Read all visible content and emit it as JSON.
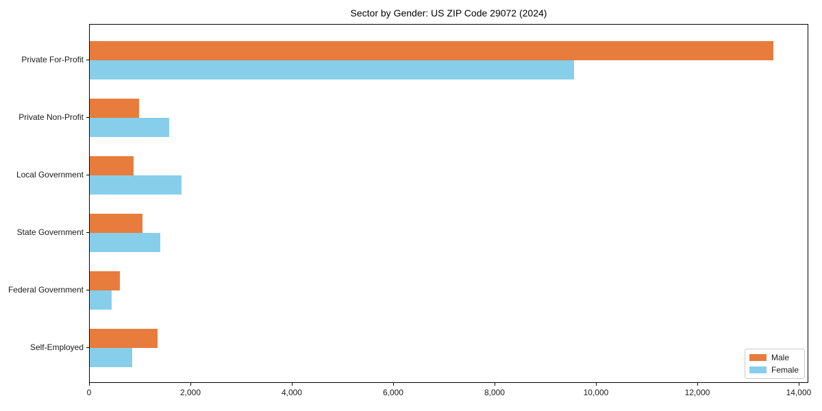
{
  "chart_data": {
    "type": "bar",
    "orientation": "horizontal",
    "title": "Sector by Gender: US ZIP Code 29072 (2024)",
    "categories": [
      "Private For-Profit",
      "Private Non-Profit",
      "Local Government",
      "State Government",
      "Federal Government",
      "Self-Employed"
    ],
    "series": [
      {
        "name": "Male",
        "color": "#E87C3C",
        "values": [
          13510,
          970,
          870,
          1040,
          600,
          1340
        ]
      },
      {
        "name": "Female",
        "color": "#87CEEB",
        "values": [
          9570,
          1570,
          1810,
          1400,
          440,
          840
        ]
      }
    ],
    "xlabel": "",
    "ylabel": "",
    "xlim": [
      0,
      14190
    ],
    "xticks": [
      0,
      2000,
      4000,
      6000,
      8000,
      10000,
      12000,
      14000
    ],
    "xtick_labels": [
      "0",
      "2,000",
      "4,000",
      "6,000",
      "8,000",
      "10,000",
      "12,000",
      "14,000"
    ],
    "legend_position": "lower right",
    "grid": false
  }
}
